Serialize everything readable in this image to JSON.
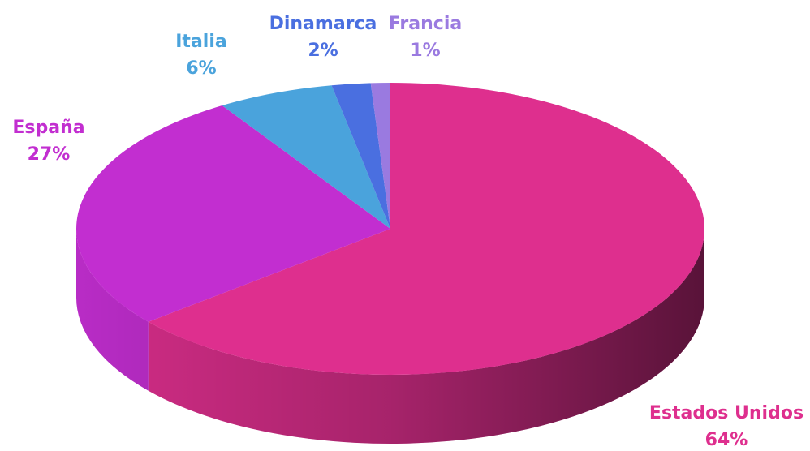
{
  "chart_data": {
    "type": "pie",
    "categories": [
      "Estados Unidos",
      "España",
      "Italia",
      "Dinamarca",
      "Francia"
    ],
    "values": [
      64,
      27,
      6,
      2,
      1
    ],
    "value_labels": [
      "64%",
      "27%",
      "6%",
      "2%",
      "1%"
    ],
    "colors": [
      "#de2f8e",
      "#c22ed0",
      "#4aa3dc",
      "#4a6fe0",
      "#9a7ae0"
    ]
  }
}
